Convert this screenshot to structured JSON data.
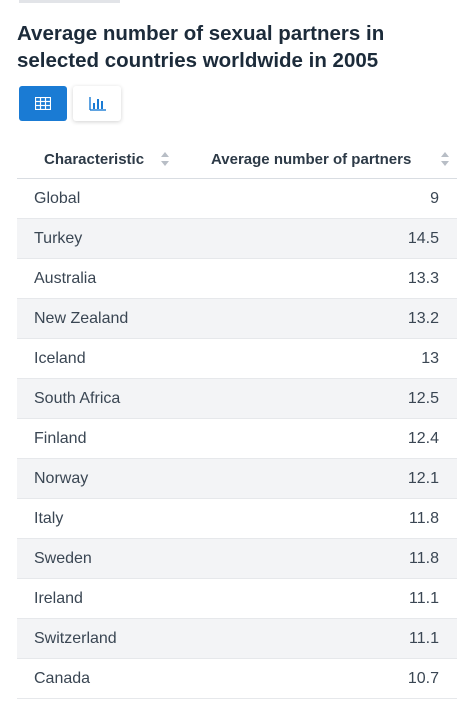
{
  "title": "Average number of sexual partners in selected countries worldwide in 2005",
  "view_toggle": {
    "table_icon": "table-icon",
    "chart_icon": "bar-chart-icon",
    "active": "table"
  },
  "table": {
    "headers": {
      "characteristic": "Characteristic",
      "value": "Average number of partners"
    },
    "rows": [
      {
        "name": "Global",
        "value": "9"
      },
      {
        "name": "Turkey",
        "value": "14.5"
      },
      {
        "name": "Australia",
        "value": "13.3"
      },
      {
        "name": "New Zealand",
        "value": "13.2"
      },
      {
        "name": "Iceland",
        "value": "13"
      },
      {
        "name": "South Africa",
        "value": "12.5"
      },
      {
        "name": "Finland",
        "value": "12.4"
      },
      {
        "name": "Norway",
        "value": "12.1"
      },
      {
        "name": "Italy",
        "value": "11.8"
      },
      {
        "name": "Sweden",
        "value": "11.8"
      },
      {
        "name": "Ireland",
        "value": "11.1"
      },
      {
        "name": "Switzerland",
        "value": "11.1"
      },
      {
        "name": "Canada",
        "value": "10.7"
      }
    ]
  },
  "colors": {
    "accent": "#1a7bd4",
    "title": "#1c2b3a",
    "row_alt": "#f3f4f6"
  }
}
